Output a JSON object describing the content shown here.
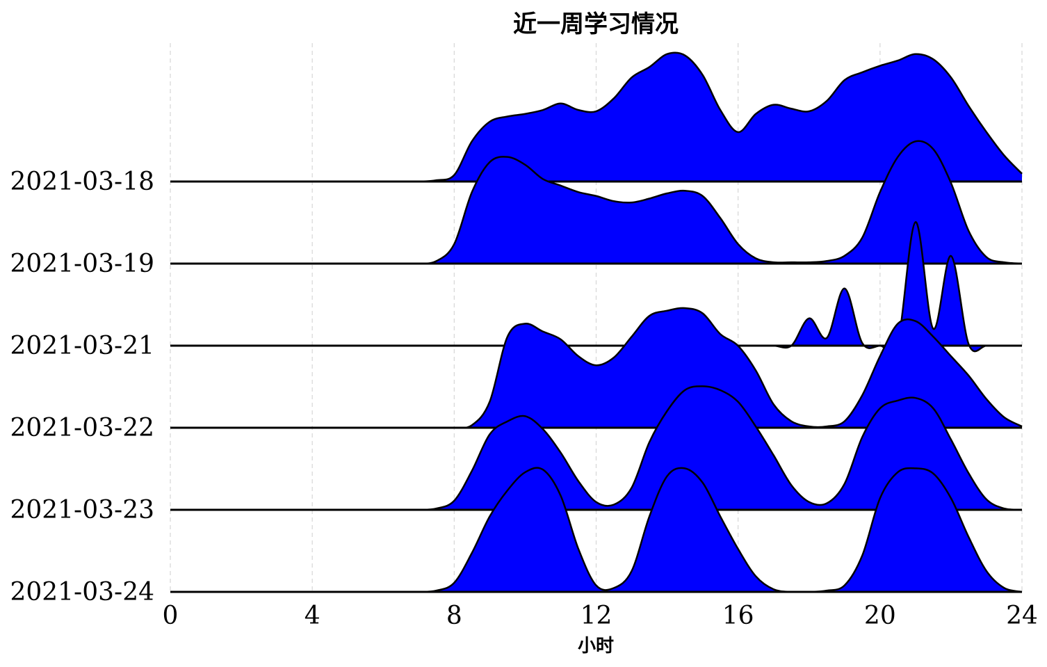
{
  "chart_data": {
    "type": "area",
    "title": "近一周学习情况",
    "xlabel": "小时",
    "ylabel": "",
    "xlim": [
      0,
      24
    ],
    "xticks": [
      0,
      4,
      8,
      12,
      16,
      20,
      24
    ],
    "grid": "x dashed",
    "fill_color": "#0000ff",
    "line_color": "#000000",
    "x": [
      0,
      0.5,
      1,
      1.5,
      2,
      2.5,
      3,
      3.5,
      4,
      4.5,
      5,
      5.5,
      6,
      6.5,
      7,
      7.5,
      8,
      8.5,
      9,
      9.5,
      10,
      10.5,
      11,
      11.5,
      12,
      12.5,
      13,
      13.5,
      14,
      14.5,
      15,
      15.5,
      16,
      16.5,
      17,
      17.5,
      18,
      18.5,
      19,
      19.5,
      20,
      20.5,
      21,
      21.5,
      22,
      22.5,
      23,
      23.5,
      24
    ],
    "series": [
      {
        "name": "2021-03-18",
        "values": [
          0,
          0,
          0,
          0,
          0,
          0,
          0,
          0,
          0,
          0,
          0,
          0,
          0,
          0,
          0,
          0.01,
          0.05,
          0.31,
          0.46,
          0.5,
          0.52,
          0.55,
          0.6,
          0.55,
          0.54,
          0.64,
          0.8,
          0.88,
          0.98,
          0.97,
          0.82,
          0.55,
          0.38,
          0.52,
          0.59,
          0.56,
          0.54,
          0.62,
          0.78,
          0.84,
          0.89,
          0.93,
          0.98,
          0.94,
          0.8,
          0.58,
          0.38,
          0.2,
          0.06
        ]
      },
      {
        "name": "2021-03-19",
        "values": [
          0,
          0,
          0,
          0,
          0,
          0,
          0,
          0,
          0,
          0,
          0,
          0,
          0,
          0,
          0,
          0.02,
          0.15,
          0.55,
          0.78,
          0.82,
          0.76,
          0.65,
          0.6,
          0.55,
          0.52,
          0.48,
          0.47,
          0.5,
          0.54,
          0.56,
          0.52,
          0.35,
          0.15,
          0.04,
          0.01,
          0.01,
          0.01,
          0.02,
          0.06,
          0.2,
          0.55,
          0.82,
          0.94,
          0.88,
          0.62,
          0.25,
          0.05,
          0.01,
          0
        ]
      },
      {
        "name": "2021-03-21",
        "values": [
          0,
          0,
          0,
          0,
          0,
          0,
          0,
          0,
          0,
          0,
          0,
          0,
          0,
          0,
          0,
          0,
          0,
          0,
          0,
          0,
          0,
          0,
          0,
          0,
          0,
          0,
          0,
          0,
          0,
          0,
          0,
          0,
          0,
          0,
          0,
          0,
          0.21,
          0.06,
          0.44,
          0.02,
          0,
          0.03,
          0.95,
          0.13,
          0.69,
          0.01,
          0,
          0,
          0
        ]
      },
      {
        "name": "2021-03-22",
        "values": [
          0,
          0,
          0,
          0,
          0,
          0,
          0,
          0,
          0,
          0,
          0,
          0,
          0,
          0,
          0,
          0,
          0,
          0.02,
          0.2,
          0.7,
          0.8,
          0.74,
          0.68,
          0.55,
          0.48,
          0.54,
          0.7,
          0.86,
          0.9,
          0.92,
          0.88,
          0.72,
          0.63,
          0.44,
          0.18,
          0.05,
          0.01,
          0.01,
          0.05,
          0.25,
          0.55,
          0.8,
          0.82,
          0.7,
          0.55,
          0.4,
          0.22,
          0.08,
          0.01
        ]
      },
      {
        "name": "2021-03-23",
        "values": [
          0,
          0,
          0,
          0,
          0,
          0,
          0,
          0,
          0,
          0,
          0,
          0,
          0,
          0,
          0,
          0.01,
          0.07,
          0.3,
          0.58,
          0.68,
          0.72,
          0.62,
          0.44,
          0.22,
          0.06,
          0.04,
          0.17,
          0.52,
          0.76,
          0.92,
          0.95,
          0.92,
          0.83,
          0.64,
          0.42,
          0.19,
          0.06,
          0.05,
          0.2,
          0.56,
          0.78,
          0.84,
          0.86,
          0.78,
          0.54,
          0.28,
          0.08,
          0.01,
          0
        ]
      },
      {
        "name": "2021-03-24",
        "values": [
          0,
          0,
          0,
          0,
          0,
          0,
          0,
          0,
          0,
          0,
          0,
          0,
          0,
          0,
          0,
          0.01,
          0.07,
          0.3,
          0.58,
          0.78,
          0.92,
          0.94,
          0.74,
          0.33,
          0.05,
          0.03,
          0.16,
          0.58,
          0.89,
          0.95,
          0.84,
          0.58,
          0.33,
          0.12,
          0.02,
          0,
          0,
          0.01,
          0.05,
          0.28,
          0.72,
          0.92,
          0.95,
          0.91,
          0.72,
          0.42,
          0.16,
          0.03,
          0
        ]
      }
    ]
  }
}
